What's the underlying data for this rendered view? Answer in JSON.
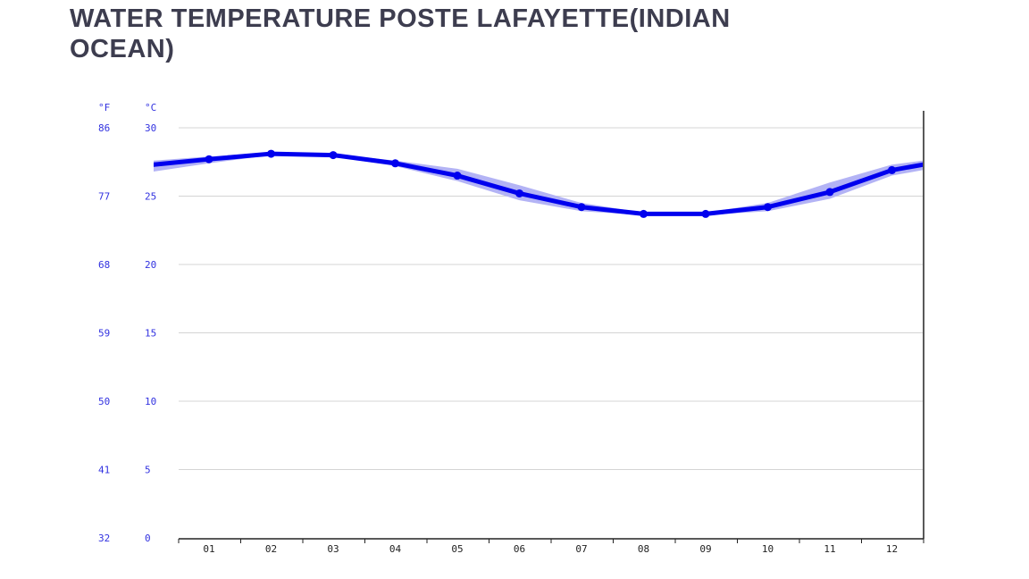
{
  "title_line1": "WATER TEMPERATURE POSTE LAFAYETTE(INDIAN",
  "title_line2": "OCEAN)",
  "chart_data": {
    "type": "line",
    "title": "WATER TEMPERATURE POSTE LAFAYETTE(INDIAN OCEAN)",
    "categories": [
      "01",
      "02",
      "03",
      "04",
      "05",
      "06",
      "07",
      "08",
      "09",
      "10",
      "11",
      "12"
    ],
    "series": [
      {
        "values": [
          27.7,
          28.1,
          28.0,
          27.4,
          26.5,
          25.2,
          24.2,
          23.7,
          23.7,
          24.2,
          25.3,
          26.9
        ],
        "color": "#0000ee"
      }
    ],
    "band": {
      "color": "#b3b3f5",
      "upper": [
        27.9,
        28.2,
        28.1,
        27.6,
        27.0,
        25.8,
        24.5,
        23.8,
        23.8,
        24.5,
        26.0,
        27.3
      ],
      "lower": [
        27.4,
        28.0,
        27.9,
        27.2,
        26.1,
        24.7,
        23.9,
        23.6,
        23.6,
        23.9,
        24.8,
        26.5
      ]
    },
    "edge_start": 27.3,
    "edge_end": 27.3,
    "y_unit_c": "°C",
    "y_unit_f": "°F",
    "yticks_c": [
      "30",
      "25",
      "20",
      "15",
      "10",
      "5",
      "0"
    ],
    "yticks_f": [
      "86",
      "77",
      "68",
      "59",
      "50",
      "41",
      "32"
    ],
    "ylim": [
      0,
      30
    ],
    "grid": true,
    "colors": {
      "axis_label": "#3232e0",
      "grid": "#d4d4d4",
      "title": "#3d3d4f"
    }
  }
}
